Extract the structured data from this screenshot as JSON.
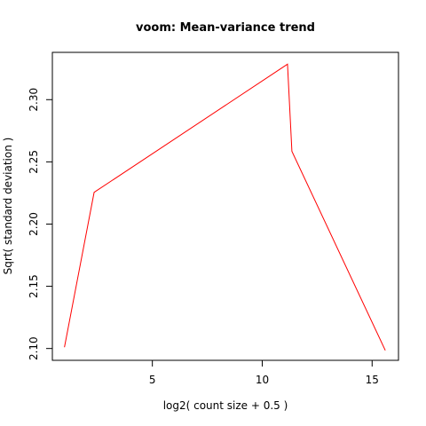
{
  "chart_data": {
    "type": "line",
    "title": "voom: Mean-variance trend",
    "xlabel": "log2( count size + 0.5 )",
    "ylabel": "Sqrt( standard deviation )",
    "xlim": [
      0.45,
      16.2
    ],
    "ylim": [
      2.0905,
      2.338
    ],
    "x_ticks": [
      5,
      10,
      15
    ],
    "y_ticks": [
      2.1,
      2.15,
      2.2,
      2.25,
      2.3
    ],
    "x_tick_labels": [
      "5",
      "10",
      "15"
    ],
    "y_tick_labels": [
      "2.10",
      "2.15",
      "2.20",
      "2.25",
      "2.30"
    ],
    "grid": false,
    "series": [
      {
        "color": "#ff0000",
        "points": [
          {
            "x": 1.0,
            "y": 2.101
          },
          {
            "x": 2.35,
            "y": 2.2255
          },
          {
            "x": 11.15,
            "y": 2.3285
          },
          {
            "x": 11.35,
            "y": 2.2585
          },
          {
            "x": 15.6,
            "y": 2.0985
          }
        ]
      }
    ]
  }
}
